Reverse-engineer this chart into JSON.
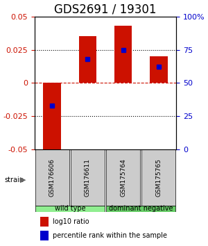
{
  "title": "GDS2691 / 19301",
  "samples": [
    "GSM176606",
    "GSM176611",
    "GSM175764",
    "GSM175765"
  ],
  "log10_ratio": [
    -0.052,
    0.035,
    0.043,
    0.02
  ],
  "percentile_rank": [
    0.33,
    0.68,
    0.75,
    0.62
  ],
  "ylim": [
    -0.05,
    0.05
  ],
  "yticks_left": [
    -0.05,
    -0.025,
    0,
    0.025,
    0.05
  ],
  "ytick_labels_left": [
    "-0.05",
    "-0.025",
    "0",
    "0.025",
    "0.05"
  ],
  "yticks_right_pct": [
    0,
    25,
    50,
    75,
    100
  ],
  "ytick_labels_right": [
    "0",
    "25",
    "50",
    "75",
    "100%"
  ],
  "groups": [
    {
      "label": "wild type",
      "samples": [
        0,
        1
      ],
      "color": "#90ee90"
    },
    {
      "label": "dominant negative",
      "samples": [
        2,
        3
      ],
      "color": "#66cc66"
    }
  ],
  "bar_color": "#cc1100",
  "dot_color": "#0000cc",
  "bar_width": 0.5,
  "legend_red_label": "log10 ratio",
  "legend_blue_label": "percentile rank within the sample",
  "strain_label": "strain",
  "tick_fontsize": 8,
  "title_fontsize": 12,
  "axis_color_left": "#cc1100",
  "axis_color_right": "#0000cc"
}
